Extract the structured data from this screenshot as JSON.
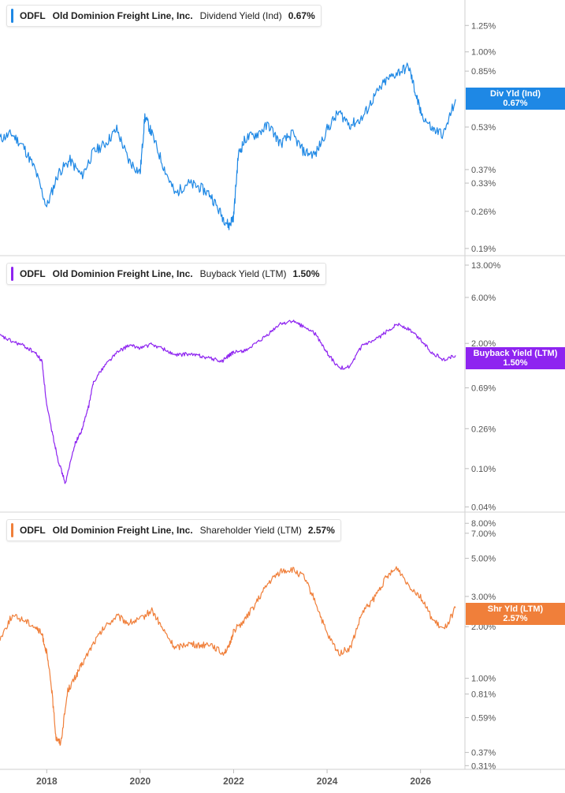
{
  "colors": {
    "dividend": "#1e88e5",
    "buyback": "#8e24f0",
    "shareholder": "#f07f3a",
    "divider": "#d6d6d6",
    "tick_text": "#555555"
  },
  "panels": [
    {
      "id": "dividend",
      "ticker": "ODFL",
      "company": "Old Dominion Freight Line, Inc.",
      "metric": "Dividend Yield (Ind)",
      "value": "0.67%",
      "tag_label": "Div Yld (Ind)",
      "tag_value": "0.67%"
    },
    {
      "id": "buyback",
      "ticker": "ODFL",
      "company": "Old Dominion Freight Line, Inc.",
      "metric": "Buyback Yield (LTM)",
      "value": "1.50%",
      "tag_label": "Buyback Yield (LTM)",
      "tag_value": "1.50%"
    },
    {
      "id": "shareholder",
      "ticker": "ODFL",
      "company": "Old Dominion Freight Line, Inc.",
      "metric": "Shareholder Yield (LTM)",
      "value": "2.57%",
      "tag_label": "Shr Yld (LTM)",
      "tag_value": "2.57%"
    }
  ],
  "chart_data": [
    {
      "type": "line",
      "scale": "log",
      "series": [
        {
          "name": "Dividend Yield (Ind)",
          "color": "#1e88e5",
          "x": [
            2017.0,
            2017.25,
            2017.5,
            2017.75,
            2018.0,
            2018.25,
            2018.5,
            2018.75,
            2019.0,
            2019.25,
            2019.5,
            2019.75,
            2020.0,
            2020.1,
            2020.25,
            2020.5,
            2020.75,
            2021.0,
            2021.25,
            2021.5,
            2021.75,
            2021.9,
            2022.0,
            2022.1,
            2022.25,
            2022.5,
            2022.75,
            2023.0,
            2023.25,
            2023.5,
            2023.75,
            2024.0,
            2024.25,
            2024.5,
            2024.75,
            2025.0,
            2025.25,
            2025.5,
            2025.75,
            2025.9,
            2026.0,
            2026.25,
            2026.5,
            2026.75
          ],
          "values": [
            0.48,
            0.5,
            0.45,
            0.37,
            0.27,
            0.36,
            0.4,
            0.35,
            0.43,
            0.46,
            0.52,
            0.4,
            0.36,
            0.58,
            0.5,
            0.38,
            0.3,
            0.33,
            0.32,
            0.3,
            0.25,
            0.23,
            0.25,
            0.42,
            0.48,
            0.5,
            0.54,
            0.46,
            0.5,
            0.43,
            0.42,
            0.52,
            0.6,
            0.54,
            0.57,
            0.68,
            0.78,
            0.84,
            0.88,
            0.7,
            0.6,
            0.52,
            0.5,
            0.67
          ]
        }
      ],
      "yticks": [
        "0.19%",
        "0.26%",
        "0.33%",
        "0.37%",
        "0.53%",
        "0.85%",
        "1.00%",
        "1.25%"
      ]
    },
    {
      "type": "line",
      "scale": "log",
      "series": [
        {
          "name": "Buyback Yield (LTM)",
          "color": "#8e24f0",
          "x": [
            2017.0,
            2017.25,
            2017.5,
            2017.75,
            2017.9,
            2018.0,
            2018.15,
            2018.25,
            2018.4,
            2018.6,
            2018.75,
            2018.9,
            2019.0,
            2019.25,
            2019.5,
            2019.75,
            2020.0,
            2020.25,
            2020.5,
            2020.75,
            2021.0,
            2021.25,
            2021.5,
            2021.75,
            2021.9,
            2022.0,
            2022.25,
            2022.5,
            2022.75,
            2023.0,
            2023.25,
            2023.5,
            2023.75,
            2024.0,
            2024.25,
            2024.5,
            2024.75,
            2025.0,
            2025.25,
            2025.5,
            2025.75,
            2026.0,
            2026.25,
            2026.5,
            2026.75
          ],
          "values": [
            2.4,
            2.1,
            1.9,
            1.6,
            1.3,
            0.45,
            0.2,
            0.12,
            0.07,
            0.18,
            0.25,
            0.45,
            0.8,
            1.2,
            1.6,
            1.9,
            1.8,
            1.95,
            1.75,
            1.5,
            1.55,
            1.5,
            1.4,
            1.3,
            1.5,
            1.6,
            1.7,
            2.0,
            2.5,
            3.2,
            3.4,
            3.0,
            2.5,
            1.6,
            1.1,
            1.15,
            1.9,
            2.1,
            2.6,
            3.2,
            2.8,
            2.2,
            1.6,
            1.35,
            1.5
          ]
        }
      ],
      "yticks": [
        "0.04%",
        "0.10%",
        "0.26%",
        "0.69%",
        "2.00%",
        "6.00%",
        "13.00%"
      ]
    },
    {
      "type": "line",
      "scale": "log",
      "series": [
        {
          "name": "Shareholder Yield (LTM)",
          "color": "#f07f3a",
          "x": [
            2017.0,
            2017.25,
            2017.5,
            2017.75,
            2017.9,
            2018.0,
            2018.1,
            2018.2,
            2018.3,
            2018.45,
            2018.6,
            2018.75,
            2019.0,
            2019.25,
            2019.5,
            2019.75,
            2020.0,
            2020.25,
            2020.5,
            2020.75,
            2021.0,
            2021.25,
            2021.5,
            2021.75,
            2021.9,
            2022.0,
            2022.25,
            2022.5,
            2022.75,
            2023.0,
            2023.25,
            2023.5,
            2023.75,
            2024.0,
            2024.25,
            2024.5,
            2024.75,
            2025.0,
            2025.25,
            2025.5,
            2025.75,
            2026.0,
            2026.25,
            2026.5,
            2026.75
          ],
          "values": [
            1.7,
            2.3,
            2.2,
            2.0,
            1.8,
            1.4,
            0.9,
            0.45,
            0.42,
            0.85,
            1.0,
            1.2,
            1.6,
            2.0,
            2.3,
            2.1,
            2.2,
            2.5,
            1.9,
            1.5,
            1.6,
            1.55,
            1.6,
            1.4,
            1.5,
            1.9,
            2.2,
            2.8,
            3.6,
            4.2,
            4.3,
            3.9,
            2.8,
            1.8,
            1.4,
            1.5,
            2.4,
            2.9,
            3.8,
            4.4,
            3.5,
            3.0,
            2.2,
            1.9,
            2.57
          ]
        }
      ],
      "yticks": [
        "0.31%",
        "0.37%",
        "0.59%",
        "0.81%",
        "1.00%",
        "2.00%",
        "3.00%",
        "5.00%",
        "7.00%",
        "8.00%"
      ]
    }
  ],
  "x_axis": {
    "ticks": [
      "2018",
      "2020",
      "2022",
      "2024",
      "2026"
    ],
    "values": [
      2018,
      2020,
      2022,
      2024,
      2026
    ]
  }
}
